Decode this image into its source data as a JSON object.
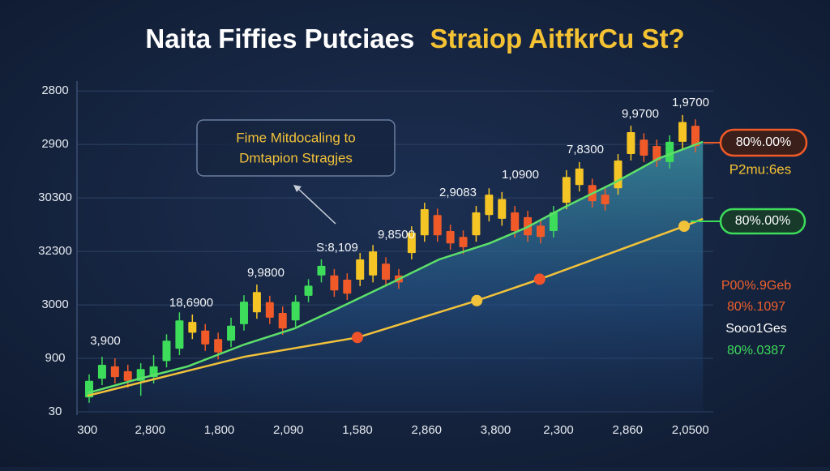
{
  "chart_data": {
    "type": "candlestick",
    "title": "Naita Fiffies Putciaes",
    "title_highlight": "Straiop AitfkrCu St?",
    "ylim": [
      0,
      6.2
    ],
    "yticks": [
      {
        "value": 0,
        "label": "30"
      },
      {
        "value": 1,
        "label": "900"
      },
      {
        "value": 2,
        "label": "3000"
      },
      {
        "value": 3,
        "label": "32300"
      },
      {
        "value": 4,
        "label": "30300"
      },
      {
        "value": 5,
        "label": "2900"
      },
      {
        "value": 6,
        "label": "2800"
      }
    ],
    "xlim": [
      0,
      10
    ],
    "xticks": [
      {
        "value": 0.1,
        "label": "300"
      },
      {
        "value": 1.1,
        "label": "2,800"
      },
      {
        "value": 2.2,
        "label": "1,800"
      },
      {
        "value": 3.3,
        "label": "2,090"
      },
      {
        "value": 4.4,
        "label": "1,580"
      },
      {
        "value": 5.5,
        "label": "2,860"
      },
      {
        "value": 6.6,
        "label": "3,800"
      },
      {
        "value": 7.6,
        "label": "2,300"
      },
      {
        "value": 8.7,
        "label": "2,860"
      },
      {
        "value": 9.7,
        "label": "2,0500"
      }
    ],
    "grid": true,
    "candles": {
      "open": [
        0.27,
        0.62,
        0.85,
        0.76,
        0.58,
        0.65,
        0.95,
        1.18,
        1.48,
        1.52,
        1.36,
        1.33,
        1.64,
        1.86,
        2.05,
        1.85,
        1.71,
        2.17,
        2.55,
        2.55,
        2.47,
        2.47,
        2.55,
        2.77,
        2.55,
        2.97,
        3.3,
        3.68,
        3.38,
        3.27,
        3.3,
        3.68,
        3.61,
        3.73,
        3.64,
        3.48,
        3.38,
        3.91,
        4.24,
        4.24,
        4.06,
        4.18,
        4.82,
        5.09,
        4.97,
        4.67,
        5.05,
        5.35
      ],
      "close": [
        0.58,
        0.88,
        0.65,
        0.58,
        0.8,
        0.85,
        1.33,
        1.71,
        1.68,
        1.26,
        1.11,
        1.61,
        2.06,
        2.24,
        1.76,
        1.56,
        2.06,
        2.36,
        2.73,
        2.27,
        2.21,
        2.85,
        3.0,
        2.47,
        2.42,
        3.35,
        3.79,
        3.3,
        3.15,
        3.08,
        3.73,
        4.06,
        3.98,
        3.38,
        3.3,
        3.27,
        3.73,
        4.39,
        4.55,
        3.94,
        3.88,
        4.7,
        5.23,
        4.79,
        4.7,
        5.05,
        5.42,
        4.97
      ],
      "high": [
        0.7,
        1.03,
        1.0,
        0.88,
        0.91,
        1.06,
        1.45,
        1.86,
        1.82,
        1.64,
        1.48,
        1.76,
        2.18,
        2.38,
        2.17,
        1.97,
        2.18,
        2.48,
        2.85,
        2.67,
        2.59,
        2.97,
        3.12,
        2.89,
        2.67,
        3.47,
        3.91,
        3.8,
        3.5,
        3.39,
        3.85,
        4.18,
        4.11,
        3.85,
        3.76,
        3.61,
        3.85,
        4.52,
        4.67,
        4.36,
        4.18,
        4.82,
        5.35,
        5.21,
        5.09,
        5.17,
        5.55,
        5.47
      ],
      "low": [
        0.17,
        0.5,
        0.53,
        0.45,
        0.3,
        0.53,
        0.83,
        1.06,
        1.36,
        1.14,
        0.98,
        1.21,
        1.52,
        1.74,
        1.64,
        1.44,
        1.59,
        2.05,
        2.42,
        2.15,
        2.09,
        2.35,
        2.42,
        2.35,
        2.3,
        2.85,
        3.18,
        3.18,
        3.03,
        2.95,
        3.18,
        3.56,
        3.48,
        3.26,
        3.18,
        3.15,
        3.26,
        3.79,
        4.12,
        3.82,
        3.76,
        4.06,
        4.7,
        4.67,
        4.58,
        4.55,
        4.92,
        4.85
      ],
      "colors": [
        "#3ddc5a",
        "#3ddc5a",
        "#f05a28",
        "#f05a28",
        "#3ddc5a",
        "#3ddc5a",
        "#3ddc5a",
        "#3ddc5a",
        "#f5c526",
        "#f05a28",
        "#f05a28",
        "#3ddc5a",
        "#3ddc5a",
        "#f5c526",
        "#f05a28",
        "#f05a28",
        "#3ddc5a",
        "#3ddc5a",
        "#3ddc5a",
        "#f05a28",
        "#f05a28",
        "#f5c526",
        "#f5c526",
        "#f05a28",
        "#f05a28",
        "#f5c526",
        "#f5c526",
        "#f05a28",
        "#f05a28",
        "#f05a28",
        "#f5c526",
        "#f5c526",
        "#f5c526",
        "#f05a28",
        "#f05a28",
        "#f05a28",
        "#3ddc5a",
        "#f5c526",
        "#f5c526",
        "#f05a28",
        "#f05a28",
        "#f5c526",
        "#f5c526",
        "#f05a28",
        "#f05a28",
        "#3ddc5a",
        "#f5c526",
        "#f05a28"
      ]
    },
    "series": [
      {
        "color": "#5de06a",
        "area": true,
        "x": [
          0.1,
          0.9,
          1.7,
          2.6,
          3.4,
          4.1,
          4.9,
          5.7,
          6.5,
          7.1,
          7.7,
          8.5,
          9.2,
          9.9
        ],
        "values": [
          0.35,
          0.61,
          0.85,
          1.26,
          1.56,
          1.94,
          2.39,
          2.85,
          3.15,
          3.45,
          3.83,
          4.29,
          4.74,
          5.05
        ]
      },
      {
        "color": "#f2c23a",
        "area": false,
        "x": [
          0.1,
          2.6,
          4.4,
          6.3,
          7.3,
          9.6,
          9.9
        ],
        "values": [
          0.3,
          1.03,
          1.39,
          2.08,
          2.48,
          3.47,
          3.61
        ]
      }
    ],
    "points": {
      "x": [
        4.4,
        6.3,
        7.3,
        9.6
      ],
      "values": [
        1.39,
        2.08,
        2.48,
        3.47
      ],
      "colors": [
        "#f0522a",
        "#f2c23a",
        "#f0522a",
        "#f2c23a"
      ]
    },
    "annotations": [
      "3,900",
      "18,6900",
      "9,9800",
      "S:8,109",
      "9,8500",
      "2,9083",
      "1,0900",
      "7,8300",
      "9,9700",
      "1,9700"
    ],
    "callout": [
      "Fime Mitdocaling to",
      "Dmtapion Stragjes"
    ],
    "side_pills": [
      "80%.00%",
      "80%.00%"
    ],
    "side_caption": "P2mu:6es",
    "side_notes": [
      "P00%.9Geb",
      "80%.1097",
      "Sooo1Ges",
      "80%.0387"
    ]
  }
}
